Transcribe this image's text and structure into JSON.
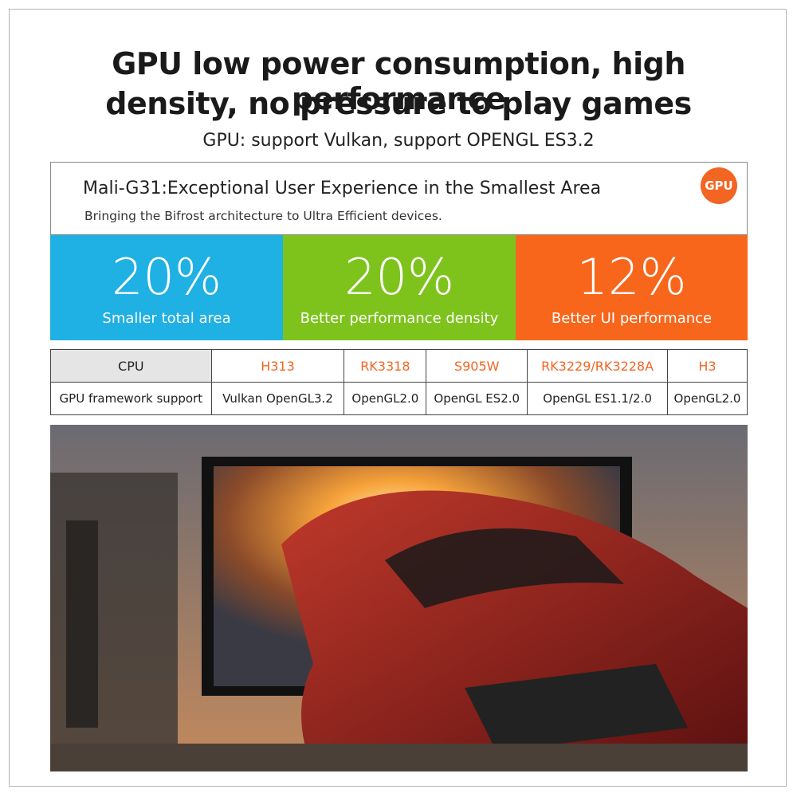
{
  "header": {
    "title_lines": [
      "GPU low power consumption, high performance",
      "density, no pressure to play games"
    ],
    "subtitle": "GPU: support Vulkan, support OPENGL ES3.2"
  },
  "info_box": {
    "title": "Mali-G31:Exceptional User Experience in the Smallest Area",
    "subtitle": "Bringing the Bifrost architecture to Ultra Efficient devices.",
    "badge": "GPU"
  },
  "stats": [
    {
      "value": "20%",
      "label": "Smaller total area"
    },
    {
      "value": "20%",
      "label": "Better performance density"
    },
    {
      "value": "12%",
      "label": "Better UI performance"
    }
  ],
  "table": {
    "rows": [
      [
        "CPU",
        "H313",
        "RK3318",
        "S905W",
        "RK3229/RK3228A",
        "H3"
      ],
      [
        "GPU framework support",
        "Vulkan OpenGL3.2",
        "OpenGL2.0",
        "OpenGL ES2.0",
        "OpenGL ES1.1/2.0",
        "OpenGL2.0"
      ]
    ]
  }
}
